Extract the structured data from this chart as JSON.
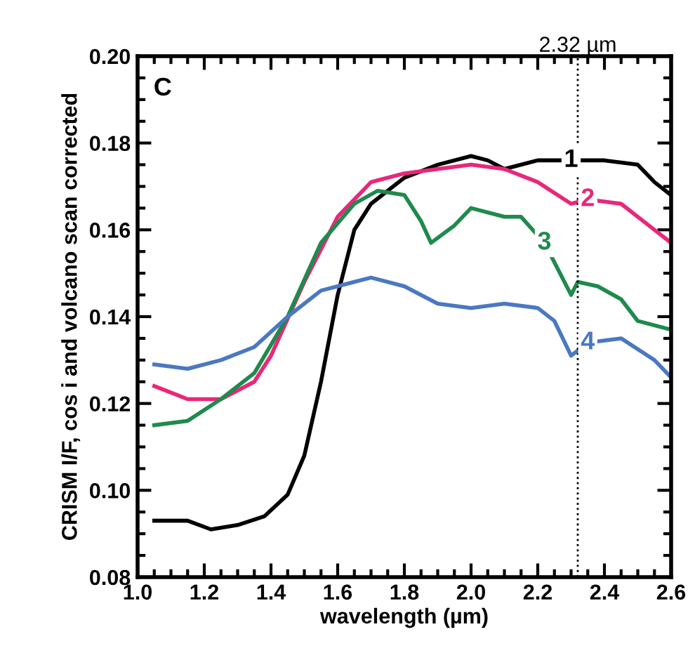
{
  "chart_data": {
    "type": "line",
    "xlabel": "wavelength (µm)",
    "ylabel": "CRISM I/F, cos i and volcano scan corrected",
    "annotations": [
      "C"
    ],
    "xlim": [
      1.0,
      2.6
    ],
    "ylim": [
      0.08,
      0.2
    ],
    "xticks": [
      {
        "value": 1.0,
        "label": "1.0"
      },
      {
        "value": 1.2,
        "label": "1.2"
      },
      {
        "value": 1.4,
        "label": "1.4"
      },
      {
        "value": 1.6,
        "label": "1.6"
      },
      {
        "value": 1.8,
        "label": "1.8"
      },
      {
        "value": 2.0,
        "label": "2.0"
      },
      {
        "value": 2.2,
        "label": "2.2"
      },
      {
        "value": 2.4,
        "label": "2.4"
      },
      {
        "value": 2.6,
        "label": "2.6"
      }
    ],
    "yticks": [
      {
        "value": 0.08,
        "label": "0.08"
      },
      {
        "value": 0.1,
        "label": "0.10"
      },
      {
        "value": 0.12,
        "label": "0.12"
      },
      {
        "value": 0.14,
        "label": "0.14"
      },
      {
        "value": 0.16,
        "label": "0.16"
      },
      {
        "value": 0.18,
        "label": "0.18"
      },
      {
        "value": 0.2,
        "label": "0.20"
      }
    ],
    "ref_lines": [
      {
        "axis": "x",
        "value": 2.32,
        "label": "2.32 µm",
        "color": "#000000",
        "line_style": "dotted"
      }
    ],
    "grid": false,
    "legend": false,
    "line_style": "solid",
    "marker": "none",
    "series": [
      {
        "name": "1",
        "color": "#000000",
        "x": [
          1.05,
          1.15,
          1.22,
          1.3,
          1.38,
          1.45,
          1.5,
          1.55,
          1.6,
          1.65,
          1.7,
          1.8,
          1.9,
          2.0,
          2.05,
          2.1,
          2.2,
          2.3,
          2.4,
          2.5,
          2.55,
          2.6
        ],
        "values": [
          0.093,
          0.093,
          0.091,
          0.092,
          0.094,
          0.099,
          0.108,
          0.125,
          0.145,
          0.16,
          0.166,
          0.172,
          0.175,
          0.177,
          0.176,
          0.174,
          0.176,
          0.176,
          0.176,
          0.175,
          0.171,
          0.168
        ]
      },
      {
        "name": "2",
        "color": "#e8287a",
        "x": [
          1.05,
          1.15,
          1.25,
          1.35,
          1.4,
          1.5,
          1.6,
          1.7,
          1.8,
          1.9,
          2.0,
          2.1,
          2.2,
          2.3,
          2.35,
          2.45,
          2.55,
          2.6
        ],
        "values": [
          0.124,
          0.121,
          0.121,
          0.125,
          0.131,
          0.148,
          0.163,
          0.171,
          0.173,
          0.174,
          0.175,
          0.174,
          0.171,
          0.166,
          0.167,
          0.166,
          0.16,
          0.157
        ]
      },
      {
        "name": "3",
        "color": "#1f8a4c",
        "x": [
          1.05,
          1.15,
          1.25,
          1.35,
          1.45,
          1.55,
          1.65,
          1.72,
          1.8,
          1.85,
          1.88,
          1.95,
          2.0,
          2.1,
          2.15,
          2.22,
          2.28,
          2.3,
          2.32,
          2.38,
          2.45,
          2.5,
          2.6
        ],
        "values": [
          0.115,
          0.116,
          0.121,
          0.127,
          0.14,
          0.157,
          0.166,
          0.169,
          0.168,
          0.162,
          0.157,
          0.161,
          0.165,
          0.163,
          0.163,
          0.157,
          0.148,
          0.145,
          0.148,
          0.147,
          0.144,
          0.139,
          0.137
        ]
      },
      {
        "name": "4",
        "color": "#4a78c2",
        "x": [
          1.05,
          1.15,
          1.25,
          1.35,
          1.45,
          1.55,
          1.65,
          1.7,
          1.8,
          1.9,
          2.0,
          2.1,
          2.2,
          2.25,
          2.3,
          2.35,
          2.45,
          2.55,
          2.6
        ],
        "values": [
          0.129,
          0.128,
          0.13,
          0.133,
          0.14,
          0.146,
          0.148,
          0.149,
          0.147,
          0.143,
          0.142,
          0.143,
          0.142,
          0.139,
          0.131,
          0.134,
          0.135,
          0.13,
          0.126
        ]
      }
    ]
  }
}
